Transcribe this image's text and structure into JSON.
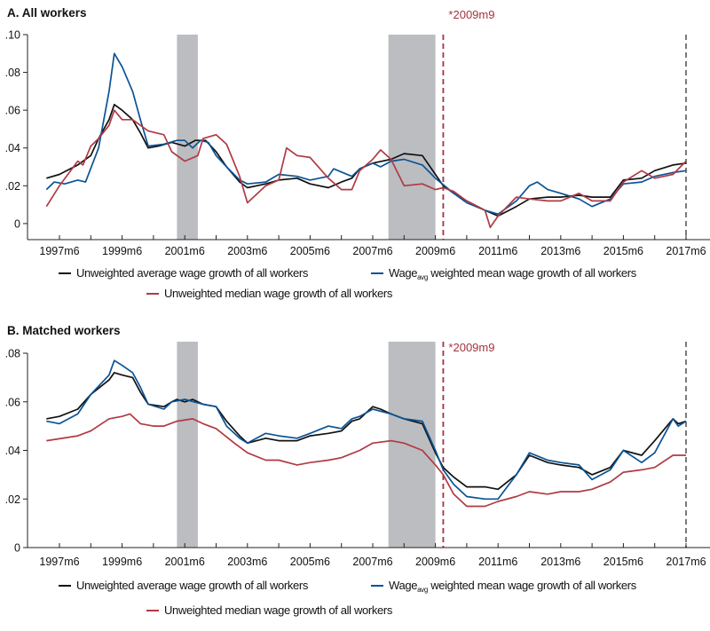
{
  "chart_data": [
    {
      "type": "line",
      "title": "A. All workers",
      "ylim": [
        -0.0085,
        0.1
      ],
      "yticks": [
        0,
        0.02,
        0.04,
        0.06,
        0.08,
        0.1
      ],
      "ytick_labels": [
        "0",
        ".02",
        ".04",
        ".06",
        ".08",
        ".10"
      ],
      "xtick_labels": [
        "1997m6",
        "1999m6",
        "2001m6",
        "2003m6",
        "2005m6",
        "2007m6",
        "2009m6",
        "2011m6",
        "2013m6",
        "2015m6",
        "2017m6"
      ],
      "grid": false,
      "shaded_periods": [
        [
          "2001m3",
          "2001m11"
        ],
        [
          "2007m12",
          "2009m6"
        ]
      ],
      "vlines": [
        {
          "x": "2009m9",
          "label": "*2009m9",
          "color": "#a3333d"
        },
        {
          "x": "2017m6",
          "label": "",
          "color": "#6b6b6b"
        }
      ],
      "legend": {
        "placement": "bottom"
      },
      "series": [
        {
          "name": "Unweighted average wage growth of all workers",
          "color": "#111111",
          "x": [
            "1997m1",
            "1997m6",
            "1998m1",
            "1998m6",
            "1998m9",
            "1999m1",
            "1999m3",
            "1999m6",
            "1999m10",
            "2000m1",
            "2000m4",
            "2000m8",
            "2001m1",
            "2001m6",
            "2001m10",
            "2002m2",
            "2002m6",
            "2002m10",
            "2003m3",
            "2003m6",
            "2004m1",
            "2004m6",
            "2005m1",
            "2005m6",
            "2006m1",
            "2006m6",
            "2006m10",
            "2007m1",
            "2007m6",
            "2008m1",
            "2008m6",
            "2009m1",
            "2009m6",
            "2009m9",
            "2010m1",
            "2010m6",
            "2011m1",
            "2011m6",
            "2012m1",
            "2012m6",
            "2013m1",
            "2013m6",
            "2014m1",
            "2014m6",
            "2015m1",
            "2015m6",
            "2016m1",
            "2016m6",
            "2017m1",
            "2017m6"
          ],
          "y": [
            0.024,
            0.026,
            0.031,
            0.036,
            0.045,
            0.055,
            0.063,
            0.06,
            0.055,
            0.048,
            0.04,
            0.041,
            0.043,
            0.041,
            0.044,
            0.044,
            0.038,
            0.03,
            0.022,
            0.019,
            0.021,
            0.023,
            0.024,
            0.021,
            0.019,
            0.022,
            0.024,
            0.029,
            0.032,
            0.034,
            0.037,
            0.036,
            0.026,
            0.02,
            0.016,
            0.012,
            0.007,
            0.004,
            0.009,
            0.013,
            0.014,
            0.014,
            0.015,
            0.014,
            0.014,
            0.023,
            0.024,
            0.028,
            0.031,
            0.032
          ]
        },
        {
          "name": "Wage",
          "name_subscript": "avg",
          "name_suffix": " weighted mean wage growth of all workers",
          "color": "#0b5394",
          "x": [
            "1997m1",
            "1997m4",
            "1997m8",
            "1998m1",
            "1998m4",
            "1998m9",
            "1999m1",
            "1999m3",
            "1999m6",
            "1999m10",
            "2000m1",
            "2000m4",
            "2000m10",
            "2001m3",
            "2001m6",
            "2001m9",
            "2001m12",
            "2002m3",
            "2002m6",
            "2002m10",
            "2003m3",
            "2003m6",
            "2004m1",
            "2004m6",
            "2005m1",
            "2005m6",
            "2006m1",
            "2006m3",
            "2006m10",
            "2007m1",
            "2007m6",
            "2007m9",
            "2008m1",
            "2008m6",
            "2009m1",
            "2009m6",
            "2010m1",
            "2010m6",
            "2011m1",
            "2011m6",
            "2012m1",
            "2012m6",
            "2012m9",
            "2013m1",
            "2013m6",
            "2014m1",
            "2014m6",
            "2015m1",
            "2015m6",
            "2016m1",
            "2016m6",
            "2017m1",
            "2017m6"
          ],
          "y": [
            0.018,
            0.022,
            0.021,
            0.023,
            0.022,
            0.04,
            0.07,
            0.09,
            0.083,
            0.07,
            0.055,
            0.041,
            0.042,
            0.044,
            0.044,
            0.04,
            0.044,
            0.043,
            0.036,
            0.03,
            0.023,
            0.021,
            0.022,
            0.026,
            0.025,
            0.023,
            0.025,
            0.029,
            0.025,
            0.029,
            0.032,
            0.03,
            0.033,
            0.034,
            0.031,
            0.024,
            0.016,
            0.011,
            0.007,
            0.005,
            0.012,
            0.02,
            0.022,
            0.018,
            0.016,
            0.013,
            0.009,
            0.013,
            0.021,
            0.022,
            0.025,
            0.027,
            0.028
          ]
        },
        {
          "name": "Unweighted median wage growth of all workers",
          "color": "#b03a44",
          "x": [
            "1997m1",
            "1997m6",
            "1998m1",
            "1998m3",
            "1998m6",
            "1998m9",
            "1999m1",
            "1999m3",
            "1999m6",
            "1999m10",
            "2000m1",
            "2000m4",
            "2000m10",
            "2001m1",
            "2001m6",
            "2001m11",
            "2002m1",
            "2002m6",
            "2002m10",
            "2003m3",
            "2003m6",
            "2004m1",
            "2004m6",
            "2004m9",
            "2005m1",
            "2005m6",
            "2006m1",
            "2006m6",
            "2006m10",
            "2007m1",
            "2007m6",
            "2007m9",
            "2008m1",
            "2008m6",
            "2009m1",
            "2009m6",
            "2009m9",
            "2010m1",
            "2010m6",
            "2011m1",
            "2011m3",
            "2011m6",
            "2012m1",
            "2012m6",
            "2013m1",
            "2013m6",
            "2014m1",
            "2014m6",
            "2015m1",
            "2015m6",
            "2016m1",
            "2016m6",
            "2017m1",
            "2017m6"
          ],
          "y": [
            0.009,
            0.02,
            0.033,
            0.031,
            0.041,
            0.045,
            0.052,
            0.06,
            0.055,
            0.055,
            0.052,
            0.049,
            0.047,
            0.038,
            0.033,
            0.036,
            0.045,
            0.047,
            0.042,
            0.025,
            0.011,
            0.02,
            0.023,
            0.04,
            0.036,
            0.035,
            0.024,
            0.018,
            0.018,
            0.028,
            0.034,
            0.039,
            0.034,
            0.02,
            0.021,
            0.018,
            0.019,
            0.017,
            0.012,
            0.007,
            -0.002,
            0.004,
            0.014,
            0.013,
            0.012,
            0.012,
            0.016,
            0.012,
            0.012,
            0.022,
            0.028,
            0.024,
            0.026,
            0.033
          ]
        }
      ]
    },
    {
      "type": "line",
      "title": "B. Matched workers",
      "ylim": [
        0,
        0.08
      ],
      "yticks": [
        0,
        0.02,
        0.04,
        0.06,
        0.08
      ],
      "ytick_labels": [
        "0",
        ".02",
        ".04",
        ".06",
        ".08"
      ],
      "xtick_labels": [
        "1997m6",
        "1999m6",
        "2001m6",
        "2003m6",
        "2005m6",
        "2007m6",
        "2009m6",
        "2011m6",
        "2013m6",
        "2015m6",
        "2017m6"
      ],
      "grid": false,
      "shaded_periods": [
        [
          "2001m3",
          "2001m11"
        ],
        [
          "2007m12",
          "2009m6"
        ]
      ],
      "vlines": [
        {
          "x": "2009m9",
          "label": "*2009m9",
          "color": "#a3333d"
        },
        {
          "x": "2017m6",
          "label": "",
          "color": "#6b6b6b"
        }
      ],
      "legend": {
        "placement": "bottom"
      },
      "series": [
        {
          "name": "Unweighted average wage growth of all workers",
          "color": "#111111",
          "x": [
            "1997m1",
            "1997m6",
            "1998m1",
            "1998m6",
            "1999m1",
            "1999m3",
            "1999m6",
            "1999m10",
            "2000m1",
            "2000m4",
            "2000m10",
            "2001m1",
            "2001m3",
            "2001m6",
            "2001m9",
            "2002m1",
            "2002m6",
            "2002m10",
            "2003m3",
            "2003m6",
            "2004m1",
            "2004m6",
            "2005m1",
            "2005m6",
            "2006m1",
            "2006m6",
            "2006m10",
            "2007m1",
            "2007m6",
            "2007m9",
            "2008m1",
            "2008m6",
            "2009m1",
            "2009m6",
            "2009m9",
            "2010m1",
            "2010m6",
            "2011m1",
            "2011m6",
            "2012m1",
            "2012m6",
            "2013m1",
            "2013m6",
            "2014m1",
            "2014m6",
            "2015m1",
            "2015m6",
            "2016m1",
            "2016m6",
            "2017m1",
            "2017m3",
            "2017m6"
          ],
          "y": [
            0.053,
            0.054,
            0.057,
            0.063,
            0.069,
            0.072,
            0.071,
            0.07,
            0.064,
            0.059,
            0.058,
            0.06,
            0.061,
            0.06,
            0.061,
            0.059,
            0.058,
            0.052,
            0.046,
            0.043,
            0.045,
            0.044,
            0.044,
            0.046,
            0.047,
            0.048,
            0.052,
            0.053,
            0.058,
            0.057,
            0.055,
            0.053,
            0.051,
            0.039,
            0.033,
            0.029,
            0.025,
            0.025,
            0.024,
            0.03,
            0.038,
            0.035,
            0.034,
            0.033,
            0.03,
            0.033,
            0.04,
            0.038,
            0.044,
            0.053,
            0.051,
            0.052
          ]
        },
        {
          "name": "Wage",
          "name_subscript": "avg",
          "name_suffix": " weighted mean wage growth of all workers",
          "color": "#0b5394",
          "x": [
            "1997m1",
            "1997m6",
            "1998m1",
            "1998m6",
            "1999m1",
            "1999m3",
            "1999m6",
            "1999m10",
            "2000m1",
            "2000m4",
            "2000m10",
            "2001m1",
            "2001m6",
            "2002m1",
            "2002m6",
            "2002m10",
            "2003m3",
            "2003m6",
            "2004m1",
            "2004m6",
            "2005m1",
            "2005m6",
            "2006m1",
            "2006m6",
            "2006m10",
            "2007m1",
            "2007m6",
            "2008m1",
            "2008m6",
            "2009m1",
            "2009m6",
            "2009m9",
            "2010m1",
            "2010m6",
            "2011m1",
            "2011m6",
            "2012m1",
            "2012m6",
            "2013m1",
            "2013m6",
            "2014m1",
            "2014m6",
            "2015m1",
            "2015m6",
            "2016m1",
            "2016m6",
            "2017m1",
            "2017m3",
            "2017m6"
          ],
          "y": [
            0.052,
            0.051,
            0.055,
            0.063,
            0.071,
            0.077,
            0.075,
            0.072,
            0.066,
            0.059,
            0.057,
            0.06,
            0.061,
            0.059,
            0.058,
            0.05,
            0.045,
            0.043,
            0.047,
            0.046,
            0.045,
            0.047,
            0.05,
            0.049,
            0.053,
            0.054,
            0.057,
            0.055,
            0.053,
            0.052,
            0.04,
            0.032,
            0.026,
            0.021,
            0.02,
            0.02,
            0.03,
            0.039,
            0.036,
            0.035,
            0.034,
            0.028,
            0.032,
            0.04,
            0.035,
            0.039,
            0.053,
            0.05,
            0.052
          ]
        },
        {
          "name": "Unweighted median wage growth of all workers",
          "color": "#b03a44",
          "x": [
            "1997m1",
            "1998m1",
            "1998m6",
            "1999m1",
            "1999m6",
            "1999m9",
            "2000m1",
            "2000m6",
            "2000m10",
            "2001m3",
            "2001m9",
            "2002m1",
            "2002m6",
            "2003m1",
            "2003m6",
            "2004m1",
            "2004m6",
            "2005m1",
            "2005m6",
            "2006m1",
            "2006m6",
            "2007m1",
            "2007m6",
            "2008m1",
            "2008m6",
            "2009m1",
            "2009m6",
            "2009m9",
            "2010m1",
            "2010m6",
            "2011m1",
            "2011m6",
            "2012m1",
            "2012m6",
            "2013m1",
            "2013m6",
            "2014m1",
            "2014m6",
            "2015m1",
            "2015m6",
            "2016m1",
            "2016m6",
            "2017m1",
            "2017m6"
          ],
          "y": [
            0.044,
            0.046,
            0.048,
            0.053,
            0.054,
            0.055,
            0.051,
            0.05,
            0.05,
            0.052,
            0.053,
            0.051,
            0.049,
            0.043,
            0.039,
            0.036,
            0.036,
            0.034,
            0.035,
            0.036,
            0.037,
            0.04,
            0.043,
            0.044,
            0.043,
            0.04,
            0.034,
            0.03,
            0.022,
            0.017,
            0.017,
            0.019,
            0.021,
            0.023,
            0.022,
            0.023,
            0.023,
            0.024,
            0.027,
            0.031,
            0.032,
            0.033,
            0.038,
            0.038
          ]
        }
      ]
    }
  ]
}
